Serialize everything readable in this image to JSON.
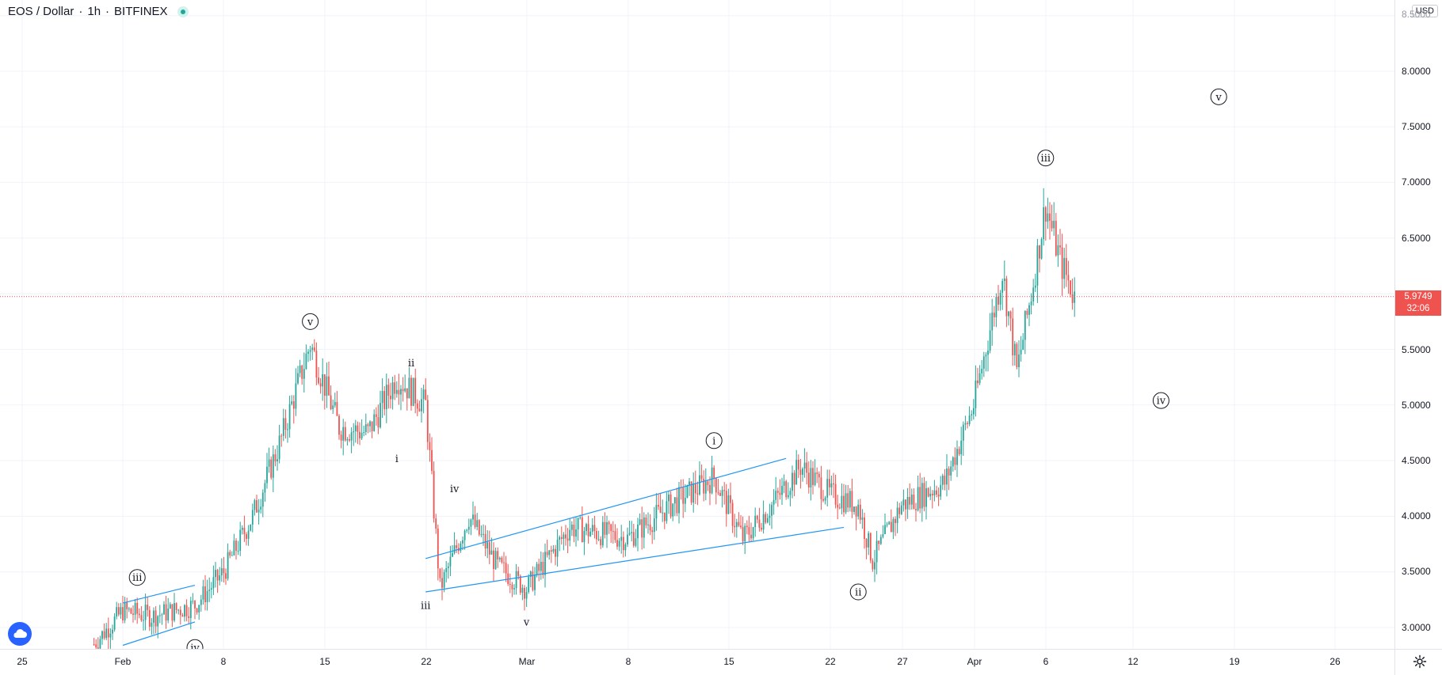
{
  "header": {
    "symbol": "EOS / Dollar",
    "interval": "1h",
    "exchange": "BITFINEX",
    "sep": "·",
    "currency": "USD"
  },
  "price_axis": {
    "ticks": [
      "8.0000",
      "7.5000",
      "7.0000",
      "6.5000",
      "5.5000",
      "5.0000",
      "4.5000",
      "4.0000",
      "3.5000",
      "3.0000"
    ],
    "top_partial": "8.5000",
    "current_price": "5.9749",
    "countdown": "32:06"
  },
  "time_axis": {
    "labels": [
      "25",
      "Feb",
      "8",
      "15",
      "22",
      "Mar",
      "8",
      "15",
      "22",
      "27",
      "Apr",
      "6",
      "12",
      "19",
      "26"
    ]
  },
  "colors": {
    "up": "#26a69a",
    "down": "#ef5350",
    "trendline": "#2196f3",
    "grid": "#f0f3fa",
    "price_line": "#ef5350"
  },
  "wave_labels": [
    {
      "text": "iii",
      "circled": true
    },
    {
      "text": "iv",
      "circled": true
    },
    {
      "text": "v",
      "circled": true
    },
    {
      "text": "i",
      "circled": false
    },
    {
      "text": "ii",
      "circled": false
    },
    {
      "text": "iii",
      "circled": false
    },
    {
      "text": "iv",
      "circled": false
    },
    {
      "text": "v",
      "circled": false
    },
    {
      "text": "i",
      "circled": true
    },
    {
      "text": "ii",
      "circled": true
    },
    {
      "text": "iii",
      "circled": true
    },
    {
      "text": "iv",
      "circled": true
    },
    {
      "text": "v",
      "circled": true
    }
  ],
  "chart_data": {
    "type": "line",
    "title": "",
    "xlabel": "",
    "ylabel": "",
    "ylim": [
      2.8,
      8.6
    ],
    "grid": true,
    "series": [
      {
        "x": [
          "Jan 30",
          "Feb 1",
          "Feb 3",
          "Feb 6",
          "Feb 8",
          "Feb 10",
          "Feb 12",
          "Feb 14",
          "Feb 16",
          "Feb 18",
          "Feb 20",
          "Feb 22",
          "Feb 23",
          "Feb 25",
          "Feb 27",
          "Mar 1",
          "Mar 4",
          "Mar 8",
          "Mar 11",
          "Mar 14",
          "Mar 16",
          "Mar 18",
          "Mar 20",
          "Mar 22",
          "Mar 24",
          "Mar 25",
          "Mar 27",
          "Mar 30",
          "Apr 1",
          "Apr 3",
          "Apr 4",
          "Apr 5",
          "Apr 6",
          "Apr 7",
          "Apr 8"
        ],
        "values": [
          2.85,
          3.15,
          3.1,
          3.2,
          3.5,
          4.0,
          4.7,
          5.55,
          4.8,
          4.75,
          5.25,
          5.0,
          3.35,
          4.0,
          3.55,
          3.35,
          3.9,
          3.8,
          4.1,
          4.35,
          3.8,
          4.1,
          4.45,
          4.2,
          4.1,
          3.6,
          4.1,
          4.3,
          5.0,
          6.2,
          5.3,
          6.0,
          6.8,
          6.3,
          5.97
        ]
      }
    ]
  }
}
